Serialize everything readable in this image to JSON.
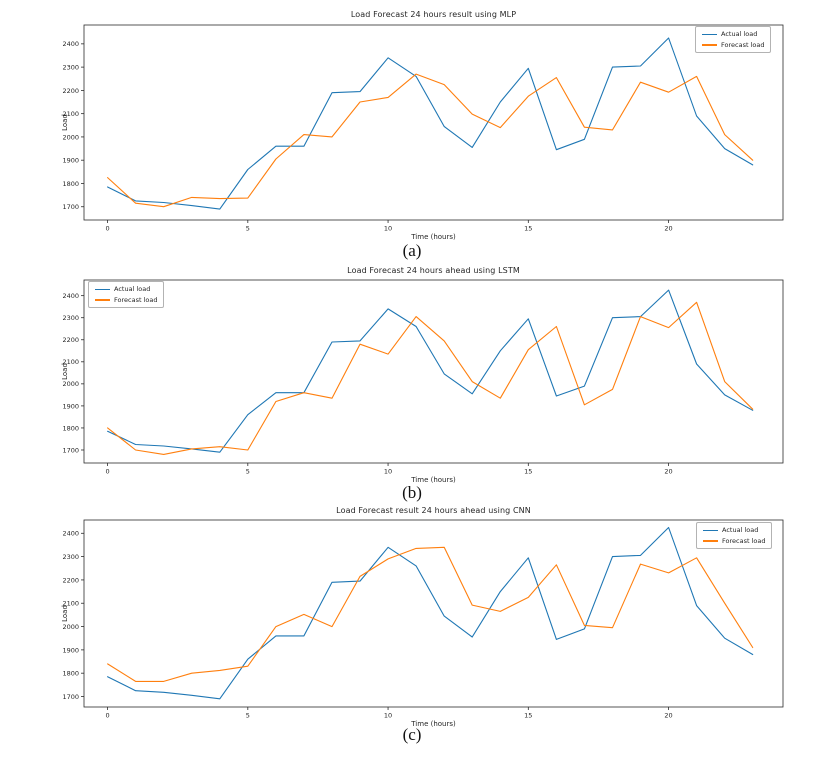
{
  "page": {
    "background": "#ffffff"
  },
  "colors": {
    "actual_line": "#1f77b4",
    "forecast_line": "#ff7f0e",
    "axis": "#2b2b2b",
    "text": "#262626"
  },
  "captions": [
    "(a)",
    "(b)",
    "(c)"
  ],
  "chart_data": [
    {
      "type": "line",
      "title": "Load Forecast 24 hours result using MLP",
      "xlabel": "Time (hours)",
      "ylabel": "Load",
      "caption": "(a)",
      "legend_position": "top-right",
      "grid": false,
      "x": [
        0,
        1,
        2,
        3,
        4,
        5,
        6,
        7,
        8,
        9,
        10,
        11,
        12,
        13,
        14,
        15,
        16,
        17,
        18,
        19,
        20,
        21,
        22,
        23
      ],
      "xticks": [
        0,
        5,
        10,
        15,
        20
      ],
      "yticks": [
        1700,
        1800,
        1900,
        2000,
        2100,
        2200,
        2300,
        2400
      ],
      "xlim": [
        -0.84,
        24.08
      ],
      "ylim": [
        1643,
        2481
      ],
      "series": [
        {
          "name": "Actual load",
          "color": "#1f77b4",
          "values": [
            1785,
            1725,
            1718,
            1705,
            1690,
            1860,
            1960,
            1960,
            2190,
            2195,
            2340,
            2260,
            2045,
            1955,
            2150,
            2295,
            1945,
            1990,
            2300,
            2305,
            2425,
            2090,
            1950,
            1880
          ]
        },
        {
          "name": "Forecast load",
          "color": "#ff7f0e",
          "values": [
            1825,
            1715,
            1700,
            1740,
            1735,
            1737,
            1905,
            2010,
            2000,
            2150,
            2170,
            2270,
            2225,
            2098,
            2040,
            2175,
            2255,
            2042,
            2030,
            2235,
            2192,
            2260,
            2010,
            1900
          ]
        }
      ]
    },
    {
      "type": "line",
      "title": "Load Forecast 24 hours ahead using LSTM",
      "xlabel": "Time (hours)",
      "ylabel": "Load",
      "caption": "(b)",
      "legend_position": "top-left",
      "grid": false,
      "x": [
        0,
        1,
        2,
        3,
        4,
        5,
        6,
        7,
        8,
        9,
        10,
        11,
        12,
        13,
        14,
        15,
        16,
        17,
        18,
        19,
        20,
        21,
        22,
        23
      ],
      "xticks": [
        0,
        5,
        10,
        15,
        20
      ],
      "yticks": [
        1700,
        1800,
        1900,
        2000,
        2100,
        2200,
        2300,
        2400
      ],
      "xlim": [
        -0.84,
        24.08
      ],
      "ylim": [
        1641,
        2471
      ],
      "series": [
        {
          "name": "Actual load",
          "color": "#1f77b4",
          "values": [
            1785,
            1725,
            1718,
            1705,
            1690,
            1860,
            1960,
            1960,
            2190,
            2195,
            2340,
            2260,
            2045,
            1955,
            2150,
            2295,
            1945,
            1990,
            2300,
            2305,
            2425,
            2090,
            1950,
            1880
          ]
        },
        {
          "name": "Forecast load",
          "color": "#ff7f0e",
          "values": [
            1800,
            1700,
            1680,
            1705,
            1715,
            1700,
            1920,
            1960,
            1935,
            2180,
            2135,
            2305,
            2195,
            2010,
            1935,
            2155,
            2260,
            1905,
            1975,
            2305,
            2255,
            2370,
            2010,
            1885
          ]
        }
      ]
    },
    {
      "type": "line",
      "title": "Load Forecast result 24 hours ahead using CNN",
      "xlabel": "Time (hours)",
      "ylabel": "Load",
      "caption": "(c)",
      "legend_position": "top-right",
      "grid": false,
      "x": [
        0,
        1,
        2,
        3,
        4,
        5,
        6,
        7,
        8,
        9,
        10,
        11,
        12,
        13,
        14,
        15,
        16,
        17,
        18,
        19,
        20,
        21,
        22,
        23
      ],
      "xticks": [
        0,
        5,
        10,
        15,
        20
      ],
      "yticks": [
        1700,
        1800,
        1900,
        2000,
        2100,
        2200,
        2300,
        2400
      ],
      "xlim": [
        -0.84,
        24.08
      ],
      "ylim": [
        1655,
        2457
      ],
      "series": [
        {
          "name": "Actual load",
          "color": "#1f77b4",
          "values": [
            1785,
            1725,
            1718,
            1705,
            1690,
            1860,
            1960,
            1960,
            2190,
            2195,
            2340,
            2260,
            2045,
            1955,
            2150,
            2295,
            1945,
            1990,
            2300,
            2305,
            2425,
            2090,
            1950,
            1880
          ]
        },
        {
          "name": "Forecast load",
          "color": "#ff7f0e",
          "values": [
            1840,
            1765,
            1765,
            1800,
            1812,
            1830,
            2000,
            2052,
            2000,
            2215,
            2290,
            2335,
            2340,
            2092,
            2065,
            2125,
            2265,
            2005,
            1995,
            2268,
            2230,
            2295,
            2100,
            1910
          ]
        }
      ]
    }
  ]
}
